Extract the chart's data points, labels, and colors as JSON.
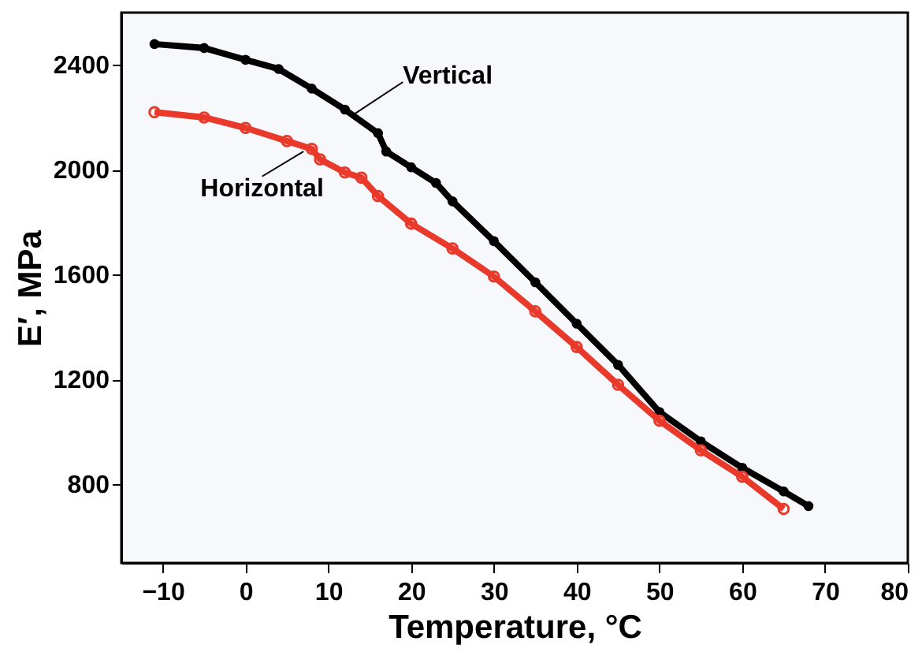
{
  "chart_data": {
    "type": "line",
    "xlabel": "Temperature, °C",
    "ylabel": "E′, MPa",
    "xlim": [
      -15,
      80
    ],
    "ylim": [
      500,
      2600
    ],
    "xticks": [
      -10,
      0,
      10,
      20,
      30,
      40,
      50,
      60,
      70,
      80
    ],
    "yticks": [
      800,
      1200,
      1600,
      2000,
      2400
    ],
    "grid": false,
    "marker": "circle",
    "line_style": "solid",
    "series": [
      {
        "color": "#000000",
        "x": [
          -11,
          -5,
          0,
          4,
          8,
          12,
          16,
          17,
          20,
          23,
          25,
          30,
          35,
          40,
          45,
          50,
          55,
          60,
          65,
          68
        ],
        "values": [
          2480,
          2465,
          2420,
          2385,
          2310,
          2230,
          2140,
          2070,
          2010,
          1950,
          1880,
          1728,
          1571,
          1413,
          1256,
          1076,
          964,
          863,
          773,
          717
        ]
      },
      {
        "color": "#e8392a",
        "x": [
          -11,
          -5,
          0,
          5,
          8,
          9,
          12,
          14,
          16,
          20,
          25,
          30,
          35,
          40,
          45,
          50,
          55,
          60,
          65
        ],
        "values": [
          2220,
          2200,
          2160,
          2110,
          2080,
          2040,
          1990,
          1970,
          1900,
          1795,
          1700,
          1593,
          1460,
          1324,
          1180,
          1043,
          930,
          829,
          706
        ]
      }
    ],
    "annotations": [
      {
        "text": "Vertical",
        "x": 13,
        "y": 2210
      },
      {
        "text": "Horizontal",
        "x": 7,
        "y": 2070
      }
    ]
  }
}
